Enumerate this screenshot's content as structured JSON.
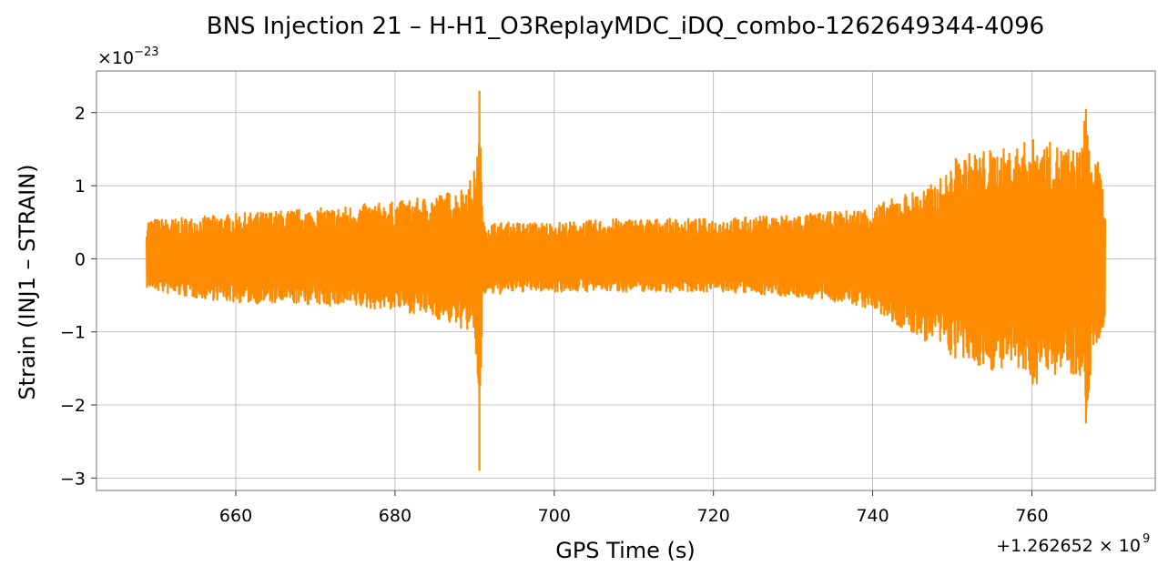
{
  "chart_data": {
    "type": "line",
    "title": "BNS Injection 21 – H-H1_O3ReplayMDC_iDQ_combo-1262649344-4096",
    "xlabel": "GPS Time (s)",
    "ylabel": "Strain (INJ1 – STRAIN)",
    "x_offset_label": "+1.262652 × 10",
    "x_offset_exp": "9",
    "y_multiplier_label": "×10",
    "y_multiplier_exp": "−23",
    "xlim": [
      642.5,
      775.5
    ],
    "ylim": [
      -3.17,
      2.57
    ],
    "x_ticks": [
      660,
      680,
      700,
      720,
      740,
      760
    ],
    "x_tick_labels": [
      "660",
      "680",
      "700",
      "720",
      "740",
      "760"
    ],
    "y_ticks": [
      2,
      1,
      0,
      -1,
      -2,
      -3
    ],
    "y_tick_labels": [
      "2",
      "1",
      "0",
      "−1",
      "−2",
      "−3"
    ],
    "grid": true,
    "series": [
      {
        "color": "#ff8c00",
        "x_range": [
          648.8,
          769.2
        ],
        "envelope": {
          "x": [
            648.8,
            652,
            656,
            660,
            664,
            668,
            672,
            676,
            680,
            684,
            686,
            688,
            689.5,
            690.3,
            690.6,
            691.0,
            692,
            696,
            700,
            704,
            708,
            712,
            716,
            720,
            724,
            728,
            732,
            736,
            740,
            742,
            744,
            746,
            748,
            749.5,
            750.5,
            752,
            754,
            756,
            758,
            760,
            762,
            764,
            766,
            766.8,
            767.5,
            768.5,
            769.2
          ],
          "upper": [
            0.55,
            0.55,
            0.58,
            0.62,
            0.65,
            0.68,
            0.7,
            0.75,
            0.78,
            0.85,
            0.9,
            0.95,
            1.1,
            1.3,
            2.3,
            0.5,
            0.5,
            0.5,
            0.5,
            0.52,
            0.55,
            0.55,
            0.55,
            0.55,
            0.57,
            0.6,
            0.62,
            0.65,
            0.72,
            0.8,
            0.9,
            0.95,
            1.05,
            1.2,
            1.4,
            1.45,
            1.5,
            1.5,
            1.55,
            1.65,
            1.6,
            1.55,
            1.5,
            2.05,
            1.4,
            1.3,
            0.75
          ],
          "lower": [
            -0.4,
            -0.5,
            -0.55,
            -0.6,
            -0.62,
            -0.62,
            -0.65,
            -0.68,
            -0.7,
            -0.78,
            -0.85,
            -0.95,
            -1.0,
            -1.4,
            -2.9,
            -0.5,
            -0.5,
            -0.45,
            -0.45,
            -0.45,
            -0.45,
            -0.45,
            -0.45,
            -0.45,
            -0.48,
            -0.5,
            -0.55,
            -0.6,
            -0.7,
            -0.85,
            -1.0,
            -1.1,
            -1.2,
            -1.3,
            -1.4,
            -1.45,
            -1.5,
            -1.55,
            -1.55,
            -1.75,
            -1.6,
            -1.55,
            -1.6,
            -2.25,
            -1.4,
            -1.25,
            -0.8
          ]
        }
      }
    ]
  }
}
